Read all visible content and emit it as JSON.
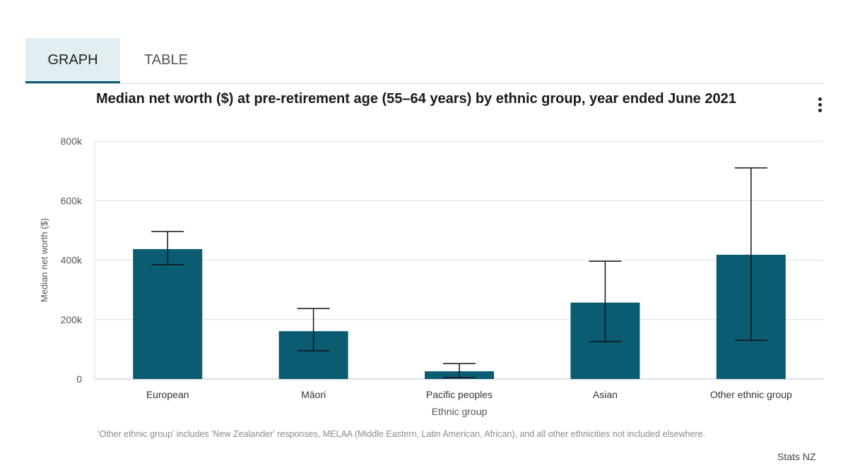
{
  "tabs": [
    {
      "label": "GRAPH",
      "active": true
    },
    {
      "label": "TABLE",
      "active": false
    }
  ],
  "menu_icon": "more-vertical-icon",
  "colors": {
    "bar": "#0b5c73",
    "accent": "#0b5c73",
    "grid": "#d9e1e8"
  },
  "chart_data": {
    "type": "bar",
    "title": "Median net worth ($) at pre-retirement age (55–64 years) by ethnic group, year ended June 2021",
    "xlabel": "Ethnic group",
    "ylabel": "Median net worth ($)",
    "ylim": [
      0,
      800000
    ],
    "yticks": [
      0,
      200000,
      400000,
      600000,
      800000
    ],
    "ytick_labels": [
      "0",
      "200k",
      "400k",
      "600k",
      "800k"
    ],
    "categories": [
      "European",
      "Māori",
      "Pacific peoples",
      "Asian",
      "Other ethnic group"
    ],
    "values": [
      437000,
      161000,
      26000,
      257000,
      418000
    ],
    "error_low": [
      385000,
      95000,
      5000,
      126000,
      130000
    ],
    "error_high": [
      496000,
      237000,
      52000,
      396000,
      710000
    ],
    "grid": true
  },
  "footnote": "'Other ethnic group' includes 'New Zealander' responses, MELAA (Middle Eastern, Latin American, African), and all other ethnicities not included elsewhere.",
  "credit": "Stats NZ"
}
